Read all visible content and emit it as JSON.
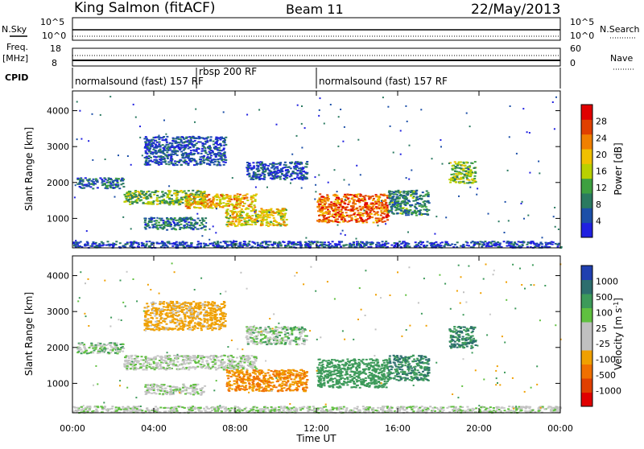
{
  "header": {
    "station": "King Salmon (fitACF)",
    "beam": "Beam 11",
    "date": "22/May/2013"
  },
  "top_panels": {
    "nsky_label": "N.Sky",
    "nsearch_label": "N.Search",
    "freq_label": "Freq.",
    "freq_unit": "[MHz]",
    "nave_label": "Nave",
    "cpid_label": "CPID",
    "nsky_ticks": [
      "10^5",
      "10^0"
    ],
    "nsearch_ticks": [
      "10^5",
      "10^0"
    ],
    "freq_ticks": [
      "18",
      "8"
    ],
    "nave_ticks": [
      "60",
      "0"
    ]
  },
  "cpid_segments": [
    {
      "label": "normalsound (fast) 157 RF",
      "start_hour": 0,
      "end_hour": 6.1
    },
    {
      "label": "rbsp 200 RF",
      "start_hour": 6.1,
      "end_hour": 12.0
    },
    {
      "label": "normalsound (fast) 157 RF",
      "start_hour": 12.0,
      "end_hour": 24
    }
  ],
  "axes": {
    "ylabel": "Slant Range [km]",
    "xlabel": "Time UT",
    "x_ticks": [
      "00:00",
      "04:00",
      "08:00",
      "12:00",
      "16:00",
      "20:00",
      "00:00"
    ],
    "y_ticks": [
      "1000",
      "2000",
      "3000",
      "4000"
    ]
  },
  "power_colorbar": {
    "label": "Power [dB]",
    "ticks": [
      "4",
      "8",
      "12",
      "16",
      "20",
      "24",
      "28"
    ],
    "colors": [
      "#2020e0",
      "#1c4fa8",
      "#2a7a60",
      "#3ea040",
      "#b9d000",
      "#f0c000",
      "#f08000",
      "#e04000",
      "#e00000"
    ]
  },
  "velocity_colorbar": {
    "label": "Velocity [m s",
    "label_sup": "-1",
    "label_end": "]",
    "ticks": [
      "1000",
      "500",
      "100",
      "25",
      "-25",
      "-100",
      "-500",
      "-1000"
    ],
    "colors": [
      "#2040b0",
      "#2d6e6e",
      "#3d9a5a",
      "#60c040",
      "#c0c0c0",
      "#c0c0c0",
      "#f0a000",
      "#f07000",
      "#e04000",
      "#e00000"
    ]
  },
  "chart_data": {
    "type": "heatmap",
    "x_unit": "hours UT",
    "xlim": [
      0,
      24
    ],
    "ylim": [
      180,
      4550
    ],
    "power_blobs": [
      {
        "t0": 0.2,
        "t1": 2.5,
        "r0": 1850,
        "r1": 2150,
        "level": 8
      },
      {
        "t0": 2.5,
        "t1": 6.5,
        "r0": 1400,
        "r1": 1800,
        "level": 14
      },
      {
        "t0": 5.5,
        "t1": 9.0,
        "r0": 1300,
        "r1": 1700,
        "level": 20
      },
      {
        "t0": 3.5,
        "t1": 6.5,
        "r0": 700,
        "r1": 1050,
        "level": 9
      },
      {
        "t0": 7.5,
        "t1": 10.5,
        "r0": 800,
        "r1": 1300,
        "level": 18
      },
      {
        "t0": 8.5,
        "t1": 11.5,
        "r0": 2100,
        "r1": 2600,
        "level": 6
      },
      {
        "t0": 12.0,
        "t1": 15.5,
        "r0": 900,
        "r1": 1700,
        "level": 24
      },
      {
        "t0": 15.5,
        "t1": 17.5,
        "r0": 1100,
        "r1": 1800,
        "level": 10
      },
      {
        "t0": 18.5,
        "t1": 19.8,
        "r0": 2000,
        "r1": 2600,
        "level": 14
      },
      {
        "t0": 3.5,
        "t1": 7.5,
        "r0": 2500,
        "r1": 3300,
        "level": 6
      },
      {
        "t0": 0,
        "t1": 24,
        "r0": 200,
        "r1": 380,
        "level": 6
      }
    ],
    "velocity_blobs": [
      {
        "t0": 0.2,
        "t1": 2.5,
        "r0": 1850,
        "r1": 2150,
        "level": 25
      },
      {
        "t0": 2.5,
        "t1": 9.0,
        "r0": 1400,
        "r1": 1800,
        "level": 0
      },
      {
        "t0": 3.5,
        "t1": 6.5,
        "r0": 700,
        "r1": 1000,
        "level": 0
      },
      {
        "t0": 7.5,
        "t1": 11.5,
        "r0": 800,
        "r1": 1400,
        "level": -300
      },
      {
        "t0": 8.5,
        "t1": 11.5,
        "r0": 2100,
        "r1": 2600,
        "level": 25
      },
      {
        "t0": 12.0,
        "t1": 15.5,
        "r0": 900,
        "r1": 1700,
        "level": 200
      },
      {
        "t0": 15.5,
        "t1": 17.5,
        "r0": 1100,
        "r1": 1800,
        "level": 300
      },
      {
        "t0": 18.5,
        "t1": 19.8,
        "r0": 2000,
        "r1": 2600,
        "level": 300
      },
      {
        "t0": 3.5,
        "t1": 7.5,
        "r0": 2500,
        "r1": 3300,
        "level": -100
      },
      {
        "t0": 0,
        "t1": 24,
        "r0": 200,
        "r1": 380,
        "level": 0
      }
    ]
  }
}
